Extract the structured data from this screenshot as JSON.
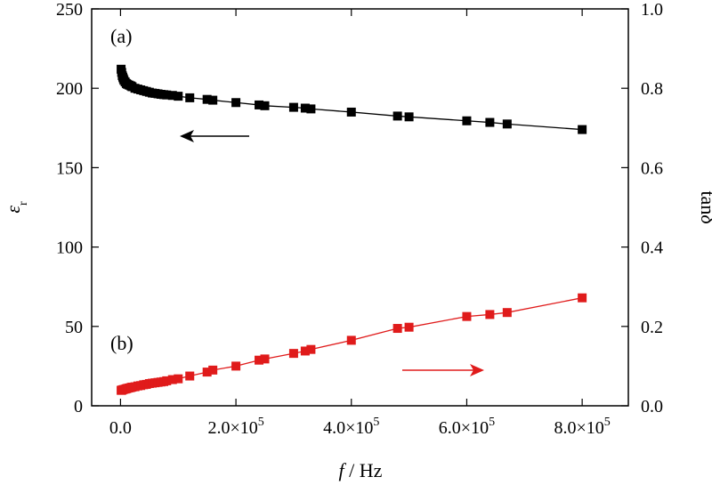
{
  "chart_data": {
    "type": "scatter",
    "xlabel": {
      "var": "f",
      "rest": " / Hz"
    },
    "ylabel_left": {
      "main": "ε",
      "sub": "r"
    },
    "ylabel_right": {
      "main": "tan",
      "sym": "δ"
    },
    "xlim": [
      -50000,
      880000
    ],
    "ylim_left": [
      0,
      250
    ],
    "ylim_right": [
      0,
      1.0
    ],
    "x_ticks": [
      {
        "value": 0,
        "label": "0.0"
      },
      {
        "value": 200000,
        "base": "2.0×10",
        "exp": "5"
      },
      {
        "value": 400000,
        "base": "4.0×10",
        "exp": "5"
      },
      {
        "value": 600000,
        "base": "6.0×10",
        "exp": "5"
      },
      {
        "value": 800000,
        "base": "8.0×10",
        "exp": "5"
      }
    ],
    "y_left_ticks": [
      {
        "value": 0,
        "label": "0"
      },
      {
        "value": 50,
        "label": "50"
      },
      {
        "value": 100,
        "label": "100"
      },
      {
        "value": 150,
        "label": "150"
      },
      {
        "value": 200,
        "label": "200"
      },
      {
        "value": 250,
        "label": "250"
      }
    ],
    "y_right_ticks": [
      {
        "value": 0.0,
        "label": "0.0"
      },
      {
        "value": 0.2,
        "label": "0.2"
      },
      {
        "value": 0.4,
        "label": "0.4"
      },
      {
        "value": 0.6,
        "label": "0.6"
      },
      {
        "value": 0.8,
        "label": "0.8"
      },
      {
        "value": 1.0,
        "label": "1.0"
      }
    ],
    "panel_labels": {
      "a": "(a)",
      "b": "(b)"
    },
    "series": [
      {
        "axis": "left",
        "color": "#000000",
        "x": [
          1000,
          2000,
          3000,
          4000,
          5000,
          6000,
          8000,
          10000,
          12000,
          15000,
          18000,
          20000,
          25000,
          30000,
          35000,
          40000,
          45000,
          50000,
          55000,
          60000,
          65000,
          70000,
          75000,
          80000,
          90000,
          100000,
          120000,
          150000,
          160000,
          200000,
          240000,
          250000,
          300000,
          320000,
          330000,
          400000,
          480000,
          500000,
          600000,
          640000,
          670000,
          800000
        ],
        "y": [
          212,
          210,
          208,
          207,
          206,
          205,
          204,
          203,
          202.5,
          202,
          201.5,
          201,
          200,
          199.5,
          199,
          198.5,
          198,
          197.5,
          197,
          196.8,
          196.5,
          196.2,
          196,
          195.8,
          195.5,
          195,
          194,
          193,
          192.5,
          191,
          189.5,
          189,
          188,
          187.5,
          187,
          185,
          182.5,
          182,
          179.5,
          178.5,
          177.5,
          174
        ]
      },
      {
        "axis": "right",
        "color": "#e01b1b",
        "x": [
          1000,
          2000,
          3000,
          5000,
          8000,
          10000,
          12000,
          15000,
          18000,
          20000,
          25000,
          30000,
          35000,
          40000,
          45000,
          50000,
          55000,
          60000,
          65000,
          70000,
          75000,
          80000,
          90000,
          100000,
          120000,
          150000,
          160000,
          200000,
          240000,
          250000,
          300000,
          320000,
          330000,
          400000,
          480000,
          500000,
          600000,
          640000,
          670000,
          800000
        ],
        "y": [
          0.039,
          0.039,
          0.04,
          0.041,
          0.042,
          0.043,
          0.044,
          0.045,
          0.046,
          0.047,
          0.048,
          0.05,
          0.051,
          0.053,
          0.054,
          0.056,
          0.057,
          0.058,
          0.059,
          0.06,
          0.061,
          0.063,
          0.066,
          0.068,
          0.075,
          0.085,
          0.09,
          0.1,
          0.115,
          0.118,
          0.132,
          0.138,
          0.142,
          0.165,
          0.195,
          0.198,
          0.225,
          0.23,
          0.235,
          0.272
        ]
      }
    ]
  }
}
